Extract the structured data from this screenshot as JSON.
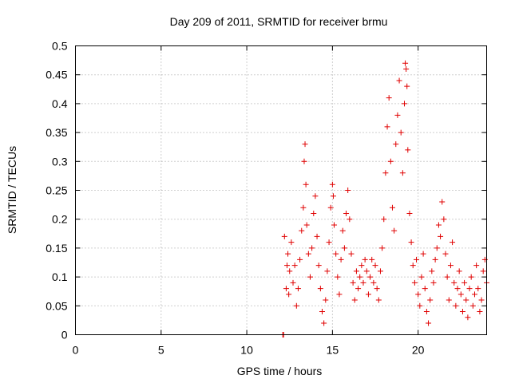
{
  "chart_data": {
    "type": "scatter",
    "title": "Day 209 of 2011, SRMTID for receiver brmu",
    "xlabel": "GPS time / hours",
    "ylabel": "SRMTID / TECUs",
    "xlim": [
      0,
      24
    ],
    "ylim": [
      0,
      0.5
    ],
    "xticks": [
      0,
      5,
      10,
      15,
      20
    ],
    "xtick_labels": [
      "0",
      "5",
      "10",
      "15",
      "20"
    ],
    "yticks": [
      0,
      0.05,
      0.1,
      0.15,
      0.2,
      0.25,
      0.3,
      0.35,
      0.4,
      0.45,
      0.5
    ],
    "ytick_labels": [
      "0",
      "0.05",
      "0.1",
      "0.15",
      "0.2",
      "0.25",
      "0.3",
      "0.35",
      "0.4",
      "0.45",
      "0.5"
    ],
    "grid": true,
    "marker": "plus",
    "color": "#e00000",
    "series": [
      {
        "name": "SRMTID",
        "points": [
          [
            12.1,
            0.0
          ],
          [
            12.15,
            0.0
          ],
          [
            12.2,
            0.17
          ],
          [
            12.3,
            0.08
          ],
          [
            12.35,
            0.12
          ],
          [
            12.4,
            0.14
          ],
          [
            12.45,
            0.07
          ],
          [
            12.5,
            0.11
          ],
          [
            12.6,
            0.16
          ],
          [
            12.7,
            0.09
          ],
          [
            12.8,
            0.12
          ],
          [
            12.9,
            0.05
          ],
          [
            13.0,
            0.08
          ],
          [
            13.1,
            0.13
          ],
          [
            13.2,
            0.18
          ],
          [
            13.3,
            0.22
          ],
          [
            13.35,
            0.3
          ],
          [
            13.4,
            0.33
          ],
          [
            13.45,
            0.26
          ],
          [
            13.5,
            0.19
          ],
          [
            13.6,
            0.14
          ],
          [
            13.7,
            0.1
          ],
          [
            13.8,
            0.15
          ],
          [
            13.9,
            0.21
          ],
          [
            14.0,
            0.24
          ],
          [
            14.1,
            0.17
          ],
          [
            14.2,
            0.12
          ],
          [
            14.3,
            0.08
          ],
          [
            14.4,
            0.04
          ],
          [
            14.5,
            0.02
          ],
          [
            14.6,
            0.06
          ],
          [
            14.7,
            0.11
          ],
          [
            14.8,
            0.16
          ],
          [
            14.9,
            0.22
          ],
          [
            15.0,
            0.26
          ],
          [
            15.05,
            0.24
          ],
          [
            15.1,
            0.19
          ],
          [
            15.2,
            0.14
          ],
          [
            15.3,
            0.1
          ],
          [
            15.4,
            0.07
          ],
          [
            15.5,
            0.13
          ],
          [
            15.6,
            0.18
          ],
          [
            15.7,
            0.15
          ],
          [
            15.8,
            0.21
          ],
          [
            15.9,
            0.25
          ],
          [
            16.0,
            0.2
          ],
          [
            16.1,
            0.14
          ],
          [
            16.2,
            0.09
          ],
          [
            16.3,
            0.06
          ],
          [
            16.4,
            0.11
          ],
          [
            16.5,
            0.08
          ],
          [
            16.6,
            0.1
          ],
          [
            16.7,
            0.12
          ],
          [
            16.8,
            0.09
          ],
          [
            16.9,
            0.13
          ],
          [
            17.0,
            0.11
          ],
          [
            17.1,
            0.07
          ],
          [
            17.2,
            0.1
          ],
          [
            17.3,
            0.13
          ],
          [
            17.4,
            0.09
          ],
          [
            17.5,
            0.12
          ],
          [
            17.6,
            0.08
          ],
          [
            17.7,
            0.06
          ],
          [
            17.8,
            0.11
          ],
          [
            17.9,
            0.15
          ],
          [
            18.0,
            0.2
          ],
          [
            18.1,
            0.28
          ],
          [
            18.2,
            0.36
          ],
          [
            18.3,
            0.41
          ],
          [
            18.4,
            0.3
          ],
          [
            18.5,
            0.22
          ],
          [
            18.6,
            0.18
          ],
          [
            18.7,
            0.33
          ],
          [
            18.8,
            0.38
          ],
          [
            18.9,
            0.44
          ],
          [
            19.0,
            0.35
          ],
          [
            19.1,
            0.28
          ],
          [
            19.2,
            0.4
          ],
          [
            19.25,
            0.47
          ],
          [
            19.3,
            0.46
          ],
          [
            19.35,
            0.43
          ],
          [
            19.4,
            0.32
          ],
          [
            19.5,
            0.21
          ],
          [
            19.6,
            0.16
          ],
          [
            19.7,
            0.12
          ],
          [
            19.8,
            0.09
          ],
          [
            19.9,
            0.13
          ],
          [
            20.0,
            0.07
          ],
          [
            20.1,
            0.05
          ],
          [
            20.2,
            0.1
          ],
          [
            20.3,
            0.14
          ],
          [
            20.4,
            0.08
          ],
          [
            20.5,
            0.04
          ],
          [
            20.6,
            0.02
          ],
          [
            20.7,
            0.06
          ],
          [
            20.8,
            0.11
          ],
          [
            20.9,
            0.09
          ],
          [
            21.0,
            0.13
          ],
          [
            21.1,
            0.15
          ],
          [
            21.2,
            0.19
          ],
          [
            21.3,
            0.17
          ],
          [
            21.4,
            0.23
          ],
          [
            21.5,
            0.2
          ],
          [
            21.6,
            0.14
          ],
          [
            21.7,
            0.1
          ],
          [
            21.8,
            0.06
          ],
          [
            21.9,
            0.12
          ],
          [
            22.0,
            0.16
          ],
          [
            22.1,
            0.09
          ],
          [
            22.2,
            0.05
          ],
          [
            22.3,
            0.08
          ],
          [
            22.4,
            0.11
          ],
          [
            22.5,
            0.07
          ],
          [
            22.6,
            0.04
          ],
          [
            22.7,
            0.09
          ],
          [
            22.8,
            0.06
          ],
          [
            22.9,
            0.03
          ],
          [
            23.0,
            0.08
          ],
          [
            23.1,
            0.1
          ],
          [
            23.2,
            0.05
          ],
          [
            23.3,
            0.07
          ],
          [
            23.4,
            0.12
          ],
          [
            23.5,
            0.08
          ],
          [
            23.6,
            0.04
          ],
          [
            23.7,
            0.06
          ],
          [
            23.8,
            0.11
          ],
          [
            23.9,
            0.13
          ],
          [
            24.0,
            0.09
          ]
        ]
      }
    ]
  }
}
